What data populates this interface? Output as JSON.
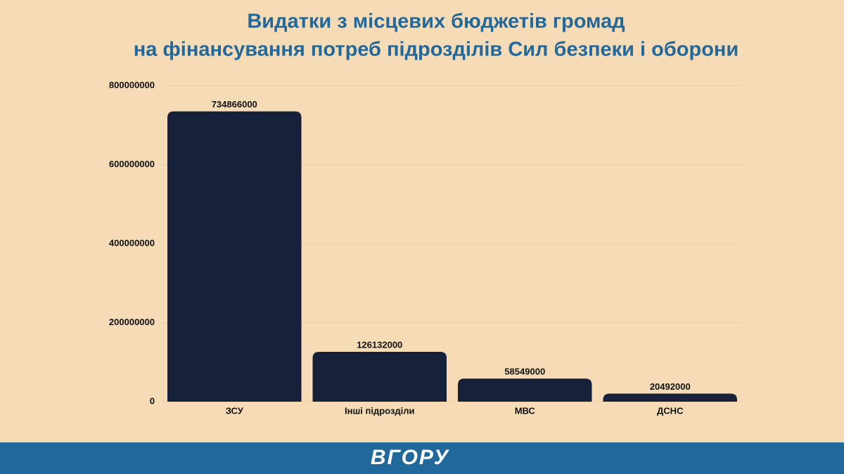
{
  "chart_data": {
    "type": "bar",
    "title": [
      "Видатки з місцевих бюджетів громад",
      "на фінансування потреб підрозділів Сил безпеки і оборони"
    ],
    "categories": [
      "ЗСУ",
      "Інші підрозділи",
      "МВС",
      "ДСНС"
    ],
    "values": [
      734866000,
      126132000,
      58549000,
      20492000
    ],
    "color": "#18213a",
    "ylim": [
      0,
      800000000
    ],
    "yticks": [
      0,
      200000000,
      400000000,
      600000000,
      800000000
    ],
    "grid": true
  },
  "footer": {
    "logo": "ВГОРУ"
  }
}
